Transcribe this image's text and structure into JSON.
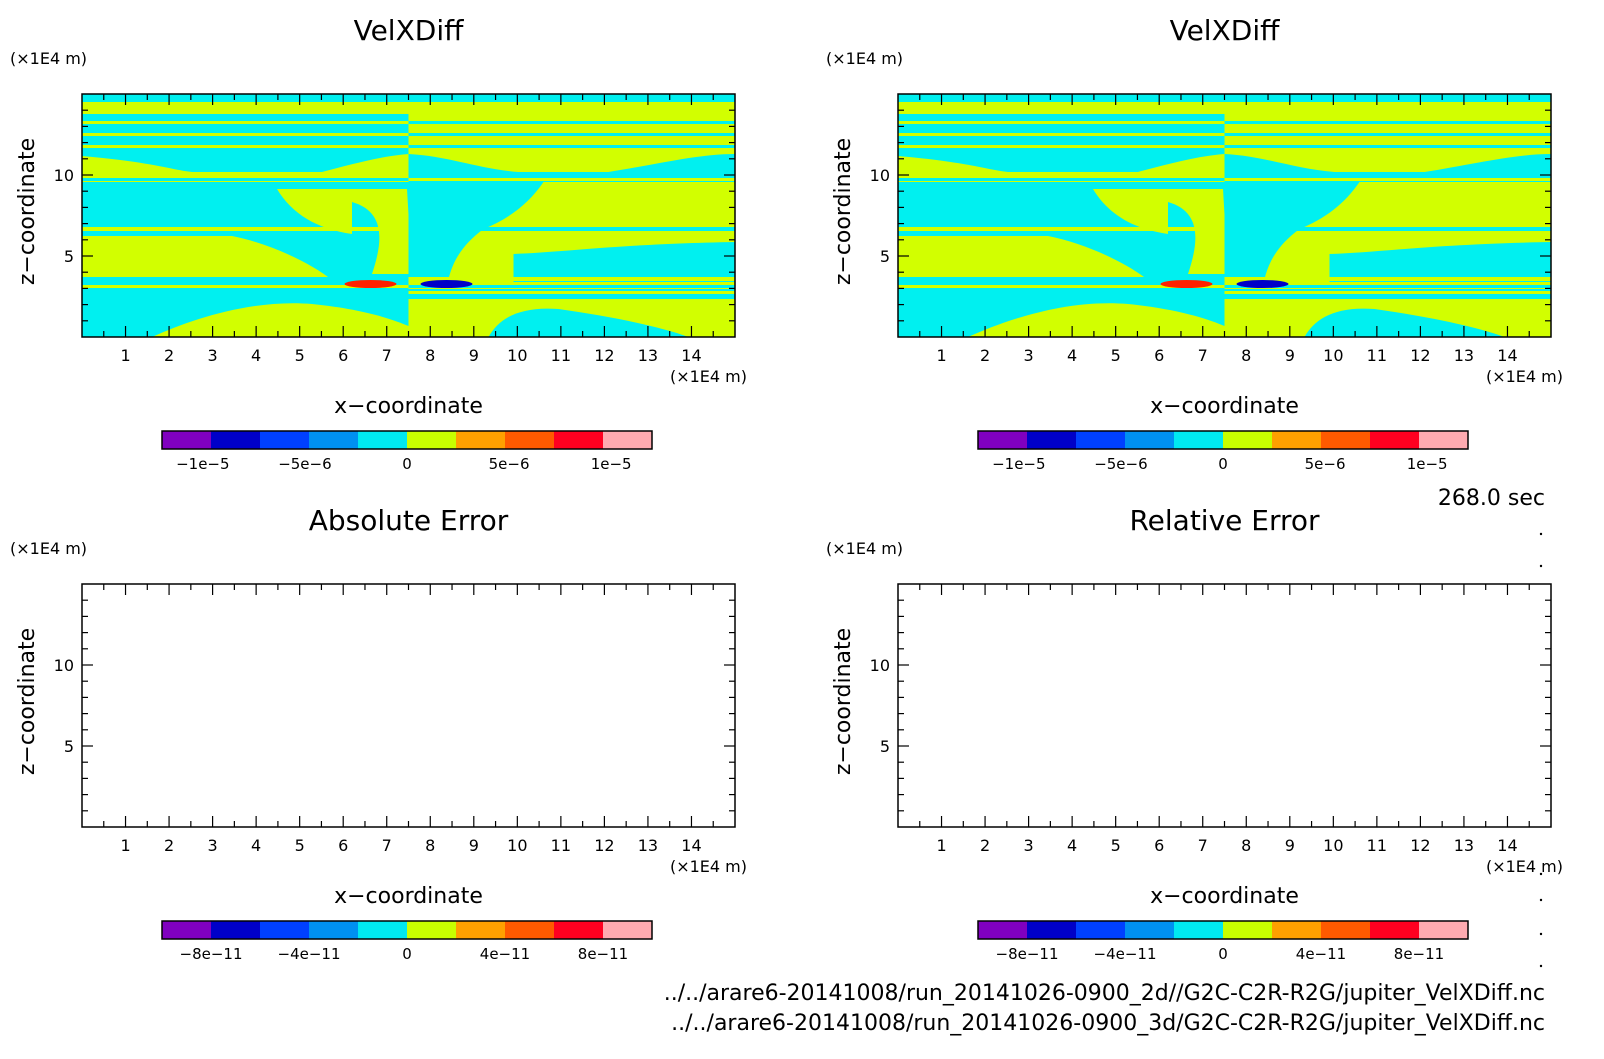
{
  "time_label": "268.0 sec",
  "files": [
    "../../arare6-20141008/run_20141026-0900_2d//G2C-C2R-R2G/jupiter_VelXDiff.nc",
    "../../arare6-20141008/run_20141026-0900_3d/G2C-C2R-R2G/jupiter_VelXDiff.nc"
  ],
  "colorbar_colors_velx": [
    "#8000c0",
    "#0000c8",
    "#0040ff",
    "#0090f0",
    "#00e8f0",
    "#c8ff00",
    "#ffa000",
    "#ff5a00",
    "#ff0020",
    "#ffaab0"
  ],
  "colorbar_colors_err": [
    "#8000c0",
    "#0000c8",
    "#0040ff",
    "#0090f0",
    "#00e8f0",
    "#c8ff00",
    "#ffa000",
    "#ff5a00",
    "#ff0020",
    "#ffaab0"
  ],
  "field_colors": {
    "negative_small": "#00f0f0",
    "positive_small": "#d2ff00",
    "extreme_negative": "#0000c8",
    "extreme_positive": "#ff2000"
  },
  "chart_data": [
    {
      "type": "heatmap",
      "title": "VelXDiff",
      "xlabel": "x−coordinate",
      "ylabel": "z−coordinate",
      "x_unit": "(×1E4 m)",
      "y_unit": "(×1E4 m)",
      "xlim": [
        0,
        15
      ],
      "ylim": [
        0,
        15
      ],
      "xticks": [
        "1",
        "2",
        "3",
        "4",
        "5",
        "6",
        "7",
        "8",
        "9",
        "10",
        "11",
        "12",
        "13",
        "14"
      ],
      "yticks": [
        "5",
        "10"
      ],
      "colorbar_ticks": [
        "−1e−5",
        "−5e−6",
        "0",
        "5e−6",
        "1e−5"
      ],
      "colorbar_range": [
        -1.2e-05,
        1.2e-05
      ]
    },
    {
      "type": "heatmap",
      "title": "VelXDiff",
      "xlabel": "x−coordinate",
      "ylabel": "z−coordinate",
      "x_unit": "(×1E4 m)",
      "y_unit": "(×1E4 m)",
      "xlim": [
        0,
        15
      ],
      "ylim": [
        0,
        15
      ],
      "xticks": [
        "1",
        "2",
        "3",
        "4",
        "5",
        "6",
        "7",
        "8",
        "9",
        "10",
        "11",
        "12",
        "13",
        "14"
      ],
      "yticks": [
        "5",
        "10"
      ],
      "colorbar_ticks": [
        "−1e−5",
        "−5e−6",
        "0",
        "5e−6",
        "1e−5"
      ],
      "colorbar_range": [
        -1.2e-05,
        1.2e-05
      ]
    },
    {
      "type": "heatmap",
      "title": "Absolute Error",
      "xlabel": "x−coordinate",
      "ylabel": "z−coordinate",
      "x_unit": "(×1E4 m)",
      "y_unit": "(×1E4 m)",
      "xlim": [
        0,
        15
      ],
      "ylim": [
        0,
        15
      ],
      "xticks": [
        "1",
        "2",
        "3",
        "4",
        "5",
        "6",
        "7",
        "8",
        "9",
        "10",
        "11",
        "12",
        "13",
        "14"
      ],
      "yticks": [
        "5",
        "10"
      ],
      "colorbar_ticks": [
        "−8e−11",
        "−4e−11",
        "0",
        "4e−11",
        "8e−11"
      ],
      "colorbar_range": [
        -1e-10,
        1e-10
      ]
    },
    {
      "type": "heatmap",
      "title": "Relative Error",
      "xlabel": "x−coordinate",
      "ylabel": "z−coordinate",
      "x_unit": "(×1E4 m)",
      "y_unit": "(×1E4 m)",
      "xlim": [
        0,
        15
      ],
      "ylim": [
        0,
        15
      ],
      "xticks": [
        "1",
        "2",
        "3",
        "4",
        "5",
        "6",
        "7",
        "8",
        "9",
        "10",
        "11",
        "12",
        "13",
        "14"
      ],
      "yticks": [
        "5",
        "10"
      ],
      "colorbar_ticks": [
        "−8e−11",
        "−4e−11",
        "0",
        "4e−11",
        "8e−11"
      ],
      "colorbar_range": [
        -1e-10,
        1e-10
      ]
    }
  ]
}
